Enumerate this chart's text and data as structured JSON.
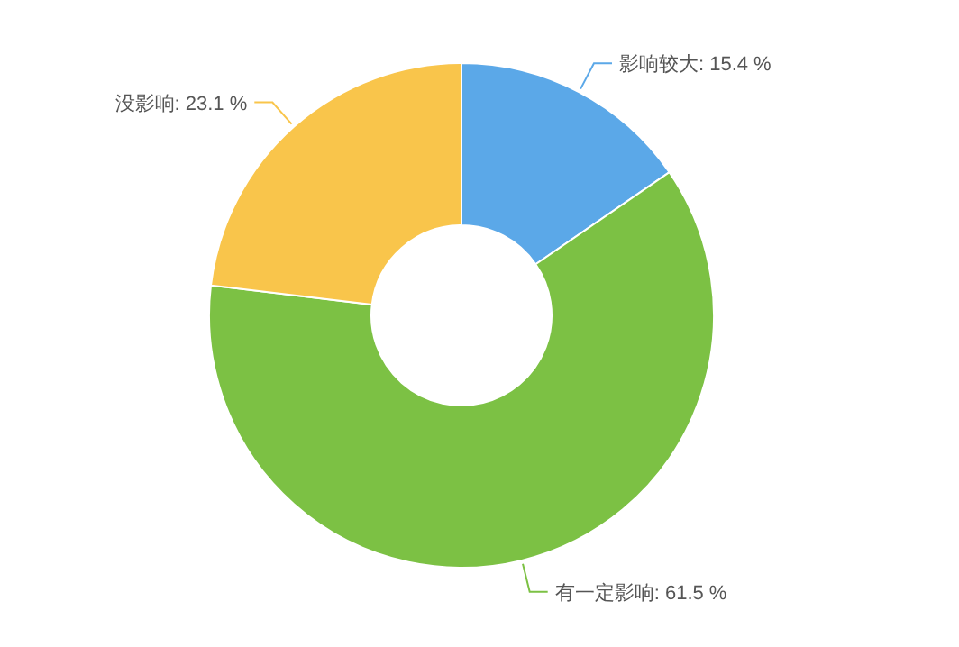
{
  "chart_data": {
    "type": "donut",
    "categories": [
      "影响较大",
      "有一定影响",
      "没影响"
    ],
    "values": [
      15.4,
      61.5,
      23.1
    ],
    "colors": [
      "#5ba8e8",
      "#7cc144",
      "#f9c54b"
    ],
    "value_labels": [
      "15.4 %",
      "61.5 %",
      "23.1 %"
    ]
  }
}
